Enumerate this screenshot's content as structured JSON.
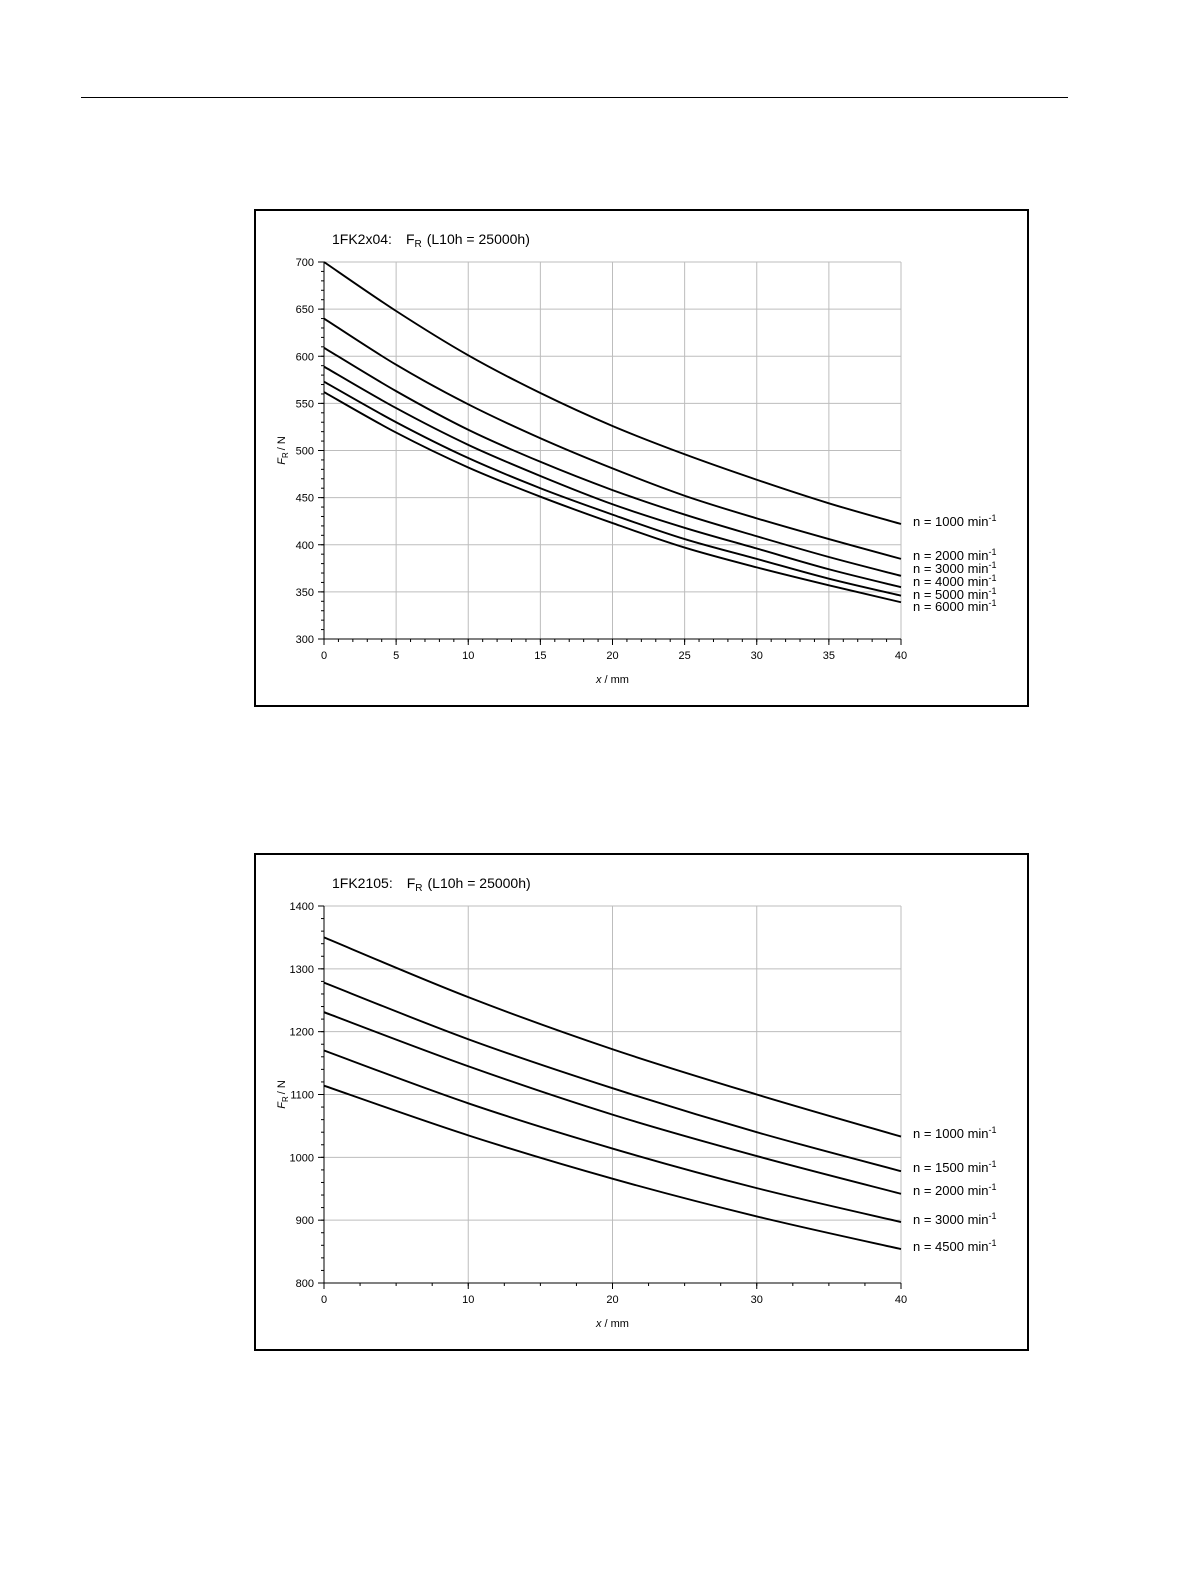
{
  "chart_data": [
    {
      "type": "line",
      "title": "1FK2x04:",
      "title_quantity": "F",
      "title_quantity_subscript": "R",
      "title_condition": "(L10h = 25000h)",
      "xlabel": "x",
      "xlabel_unit": "/ mm",
      "ylabel": "F",
      "ylabel_subscript": "R",
      "ylabel_unit": "/ N",
      "xlim": [
        0,
        40
      ],
      "ylim": [
        300,
        700
      ],
      "xticks": [
        0,
        5,
        10,
        15,
        20,
        25,
        30,
        35,
        40
      ],
      "yticks": [
        300,
        350,
        400,
        450,
        500,
        550,
        600,
        650,
        700
      ],
      "grid": true,
      "legend_placement": "right, at line ends",
      "series": [
        {
          "name": "n = 1000 min",
          "unit_exponent": "-1",
          "x": [
            0,
            5,
            10,
            15,
            20,
            25,
            30,
            35,
            40
          ],
          "y": [
            700,
            648,
            601,
            561,
            526,
            496,
            469,
            444,
            422
          ]
        },
        {
          "name": "n = 2000 min",
          "unit_exponent": "-1",
          "x": [
            0,
            5,
            10,
            15,
            20,
            25,
            30,
            35,
            40
          ],
          "y": [
            640,
            591,
            549,
            513,
            481,
            452,
            428,
            406,
            385
          ]
        },
        {
          "name": "n = 3000 min",
          "unit_exponent": "-1",
          "x": [
            0,
            5,
            10,
            15,
            20,
            25,
            30,
            35,
            40
          ],
          "y": [
            609,
            563,
            522,
            488,
            458,
            432,
            409,
            387,
            367
          ]
        },
        {
          "name": "n = 4000 min",
          "unit_exponent": "-1",
          "x": [
            0,
            5,
            10,
            15,
            20,
            25,
            30,
            35,
            40
          ],
          "y": [
            589,
            545,
            506,
            473,
            443,
            418,
            396,
            374,
            355
          ]
        },
        {
          "name": "n = 5000 min",
          "unit_exponent": "-1",
          "x": [
            0,
            5,
            10,
            15,
            20,
            25,
            30,
            35,
            40
          ],
          "y": [
            573,
            530,
            492,
            460,
            432,
            406,
            385,
            364,
            346
          ]
        },
        {
          "name": "n = 6000 min",
          "unit_exponent": "-1",
          "x": [
            0,
            5,
            10,
            15,
            20,
            25,
            30,
            35,
            40
          ],
          "y": [
            562,
            519,
            482,
            451,
            423,
            397,
            376,
            357,
            339
          ]
        }
      ]
    },
    {
      "type": "line",
      "title": "1FK2105:",
      "title_quantity": "F",
      "title_quantity_subscript": "R",
      "title_condition": "(L10h = 25000h)",
      "xlabel": "x",
      "xlabel_unit": "/ mm",
      "ylabel": "F",
      "ylabel_subscript": "R",
      "ylabel_unit": "/ N",
      "xlim": [
        0,
        40
      ],
      "ylim": [
        800,
        1400
      ],
      "xticks": [
        0,
        10,
        20,
        30,
        40
      ],
      "yticks": [
        800,
        900,
        1000,
        1100,
        1200,
        1300,
        1400
      ],
      "grid": true,
      "legend_placement": "right, at line ends",
      "series": [
        {
          "name": "n = 1000 min",
          "unit_exponent": "-1",
          "x": [
            0,
            10,
            20,
            30,
            40
          ],
          "y": [
            1350,
            1255,
            1172,
            1100,
            1033
          ]
        },
        {
          "name": "n = 1500 min",
          "unit_exponent": "-1",
          "x": [
            0,
            10,
            20,
            30,
            40
          ],
          "y": [
            1278,
            1188,
            1110,
            1040,
            978
          ]
        },
        {
          "name": "n = 2000 min",
          "unit_exponent": "-1",
          "x": [
            0,
            10,
            20,
            30,
            40
          ],
          "y": [
            1231,
            1145,
            1068,
            1002,
            942
          ]
        },
        {
          "name": "n = 3000 min",
          "unit_exponent": "-1",
          "x": [
            0,
            10,
            20,
            30,
            40
          ],
          "y": [
            1170,
            1086,
            1014,
            951,
            897
          ]
        },
        {
          "name": "n = 4500 min",
          "unit_exponent": "-1",
          "x": [
            0,
            10,
            20,
            30,
            40
          ],
          "y": [
            1114,
            1035,
            966,
            906,
            854
          ]
        }
      ]
    }
  ]
}
